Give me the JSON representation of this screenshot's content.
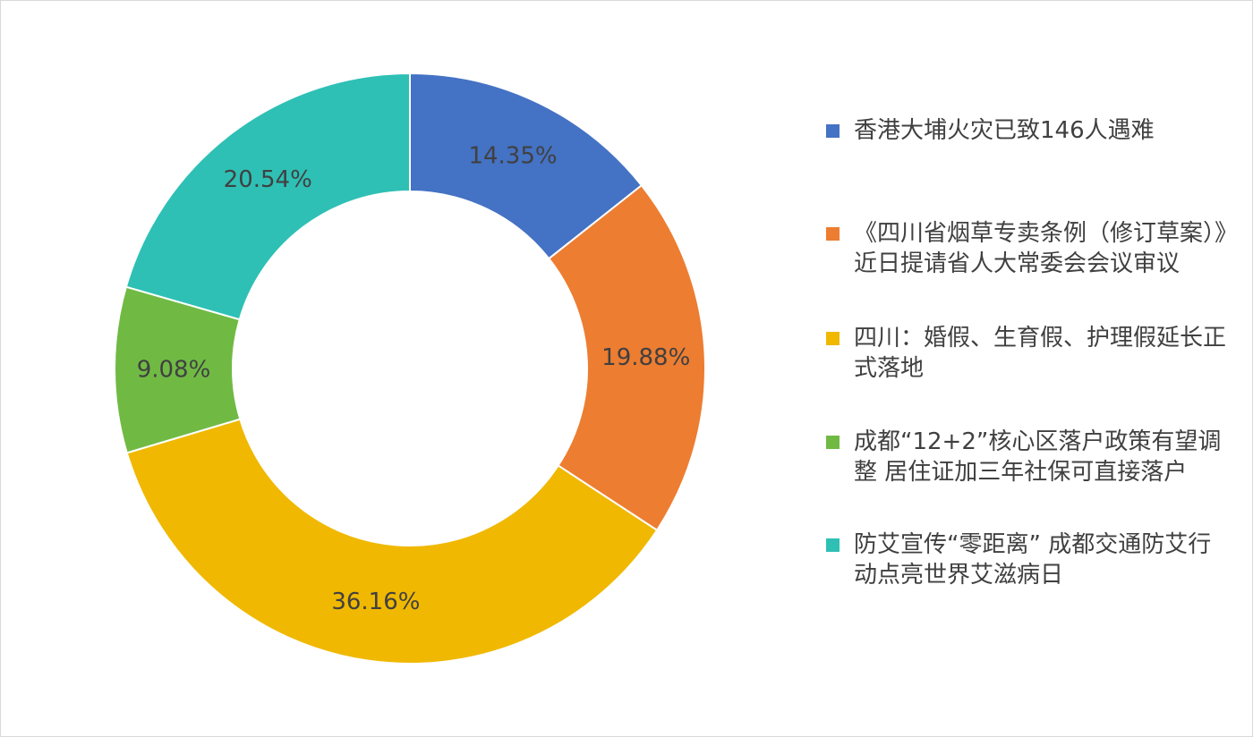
{
  "chart_data": {
    "type": "pie",
    "donut": true,
    "title": "",
    "legend_position": "right",
    "series": [
      {
        "name": "香港大埔火灾已致146人遇难",
        "value": 14.35,
        "label": "14.35%",
        "color": "#4472C4"
      },
      {
        "name": "《四川省烟草专卖条例（修订草案）》近日提请省人大常委会会议审议",
        "value": 19.88,
        "label": "19.88%",
        "color": "#ED7D31"
      },
      {
        "name": "四川：婚假、生育假、护理假延长正式落地",
        "value": 36.16,
        "label": "36.16%",
        "color": "#F0B800"
      },
      {
        "name": "成都“12+2”核心区落户政策有望调整 居住证加三年社保可直接落户",
        "value": 9.08,
        "label": "9.08%",
        "color": "#70BA44"
      },
      {
        "name": "防艾宣传“零距离” 成都交通防艾行动点亮世界艾滋病日",
        "value": 20.54,
        "label": "20.54%",
        "color": "#2EC0B5"
      }
    ]
  }
}
